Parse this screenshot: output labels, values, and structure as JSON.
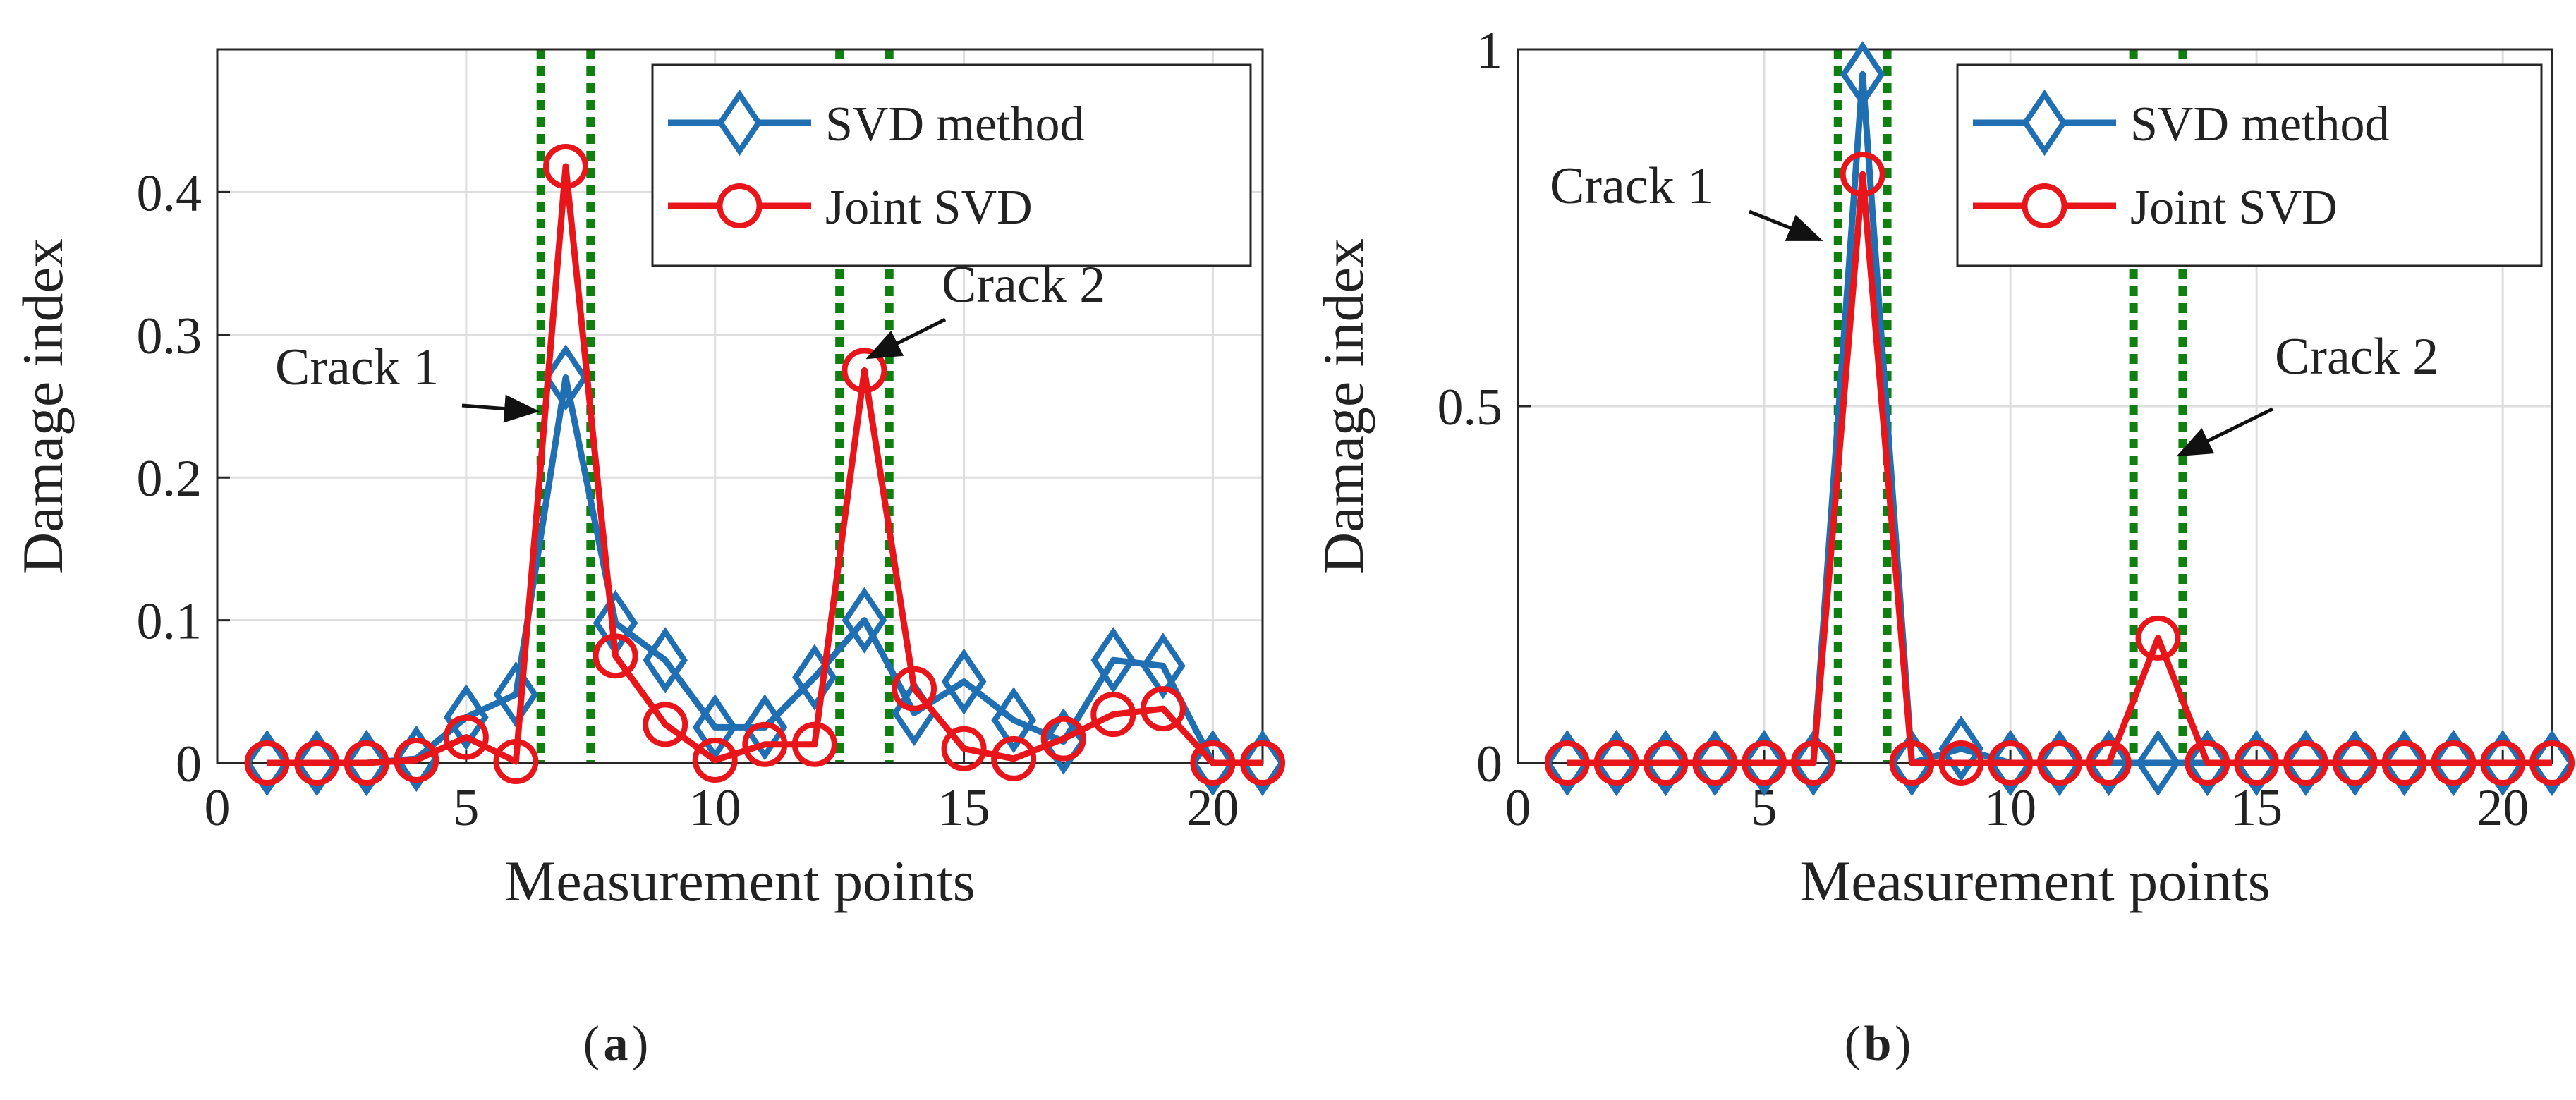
{
  "colors": {
    "svd": "#1f6fb2",
    "joint": "#e8151b",
    "crack_line": "#0f7f0f",
    "grid": "#dedede",
    "axis": "#262626",
    "arrow": "#111111"
  },
  "chart_data": [
    {
      "type": "line",
      "panel": "a",
      "caption_label": "a",
      "xlabel": "Measurement points",
      "ylabel": "Damage index",
      "xlim": [
        0,
        21
      ],
      "ylim": [
        0,
        0.5
      ],
      "xticks": [
        0,
        5,
        10,
        15,
        20
      ],
      "xtick_labels": [
        "0",
        "5",
        "10",
        "15",
        "20"
      ],
      "yticks": [
        0,
        0.1,
        0.2,
        0.3,
        0.4
      ],
      "ytick_labels": [
        "0",
        "0.1",
        "0.2",
        "0.3",
        "0.4"
      ],
      "grid": true,
      "legend_position": "top-right",
      "x": [
        1,
        2,
        3,
        4,
        5,
        6,
        7,
        8,
        9,
        10,
        11,
        12,
        13,
        14,
        15,
        16,
        17,
        18,
        19,
        20,
        21
      ],
      "series": [
        {
          "name": "SVD method",
          "marker": "diamond",
          "color_key": "svd",
          "values": [
            0,
            0,
            0,
            0.003,
            0.032,
            0.048,
            0.27,
            0.098,
            0.072,
            0.025,
            0.025,
            0.06,
            0.1,
            0.035,
            0.057,
            0.03,
            0.015,
            0.072,
            0.068,
            0,
            0
          ]
        },
        {
          "name": "Joint SVD",
          "marker": "circle",
          "color_key": "joint",
          "values": [
            0,
            0,
            0,
            0.002,
            0.018,
            0.001,
            0.418,
            0.075,
            0.027,
            0.002,
            0.013,
            0.013,
            0.275,
            0.052,
            0.01,
            0.003,
            0.017,
            0.034,
            0.038,
            0,
            0
          ]
        }
      ],
      "crack_lines": [
        6.5,
        7.5,
        12.5,
        13.5
      ],
      "annotations": [
        {
          "text": "Crack 1",
          "x": 6.55,
          "y": 0.243
        },
        {
          "text": "Crack 2",
          "x": 13.05,
          "y": 0.285
        }
      ]
    },
    {
      "type": "line",
      "panel": "b",
      "caption_label": "b",
      "xlabel": "Measurement points",
      "ylabel": "Damage index",
      "xlim": [
        0,
        21
      ],
      "ylim": [
        0,
        1
      ],
      "xticks": [
        0,
        5,
        10,
        15,
        20
      ],
      "xtick_labels": [
        "0",
        "5",
        "10",
        "15",
        "20"
      ],
      "yticks": [
        0,
        0.5,
        1
      ],
      "ytick_labels": [
        "0",
        "0.5",
        "1"
      ],
      "grid": true,
      "legend_position": "top-right",
      "x": [
        1,
        2,
        3,
        4,
        5,
        6,
        7,
        8,
        9,
        10,
        11,
        12,
        13,
        14,
        15,
        16,
        17,
        18,
        19,
        20,
        21
      ],
      "series": [
        {
          "name": "SVD method",
          "marker": "diamond",
          "color_key": "svd",
          "values": [
            0,
            0,
            0,
            0,
            0,
            0,
            0.965,
            0,
            0.02,
            0,
            0,
            0,
            0,
            0,
            0,
            0,
            0,
            0,
            0,
            0,
            0
          ]
        },
        {
          "name": "Joint SVD",
          "marker": "circle",
          "color_key": "joint",
          "values": [
            0,
            0,
            0,
            0,
            0,
            0,
            0.825,
            0,
            0,
            0,
            0,
            0,
            0.175,
            0,
            0,
            0,
            0,
            0,
            0,
            0,
            0
          ]
        }
      ],
      "crack_lines": [
        6.5,
        7.5,
        12.5,
        13.5
      ],
      "annotations": [
        {
          "text": "Crack 1",
          "x": 6.6,
          "y": 0.72
        },
        {
          "text": "Crack 2",
          "x": 13.65,
          "y": 0.42
        }
      ]
    }
  ]
}
